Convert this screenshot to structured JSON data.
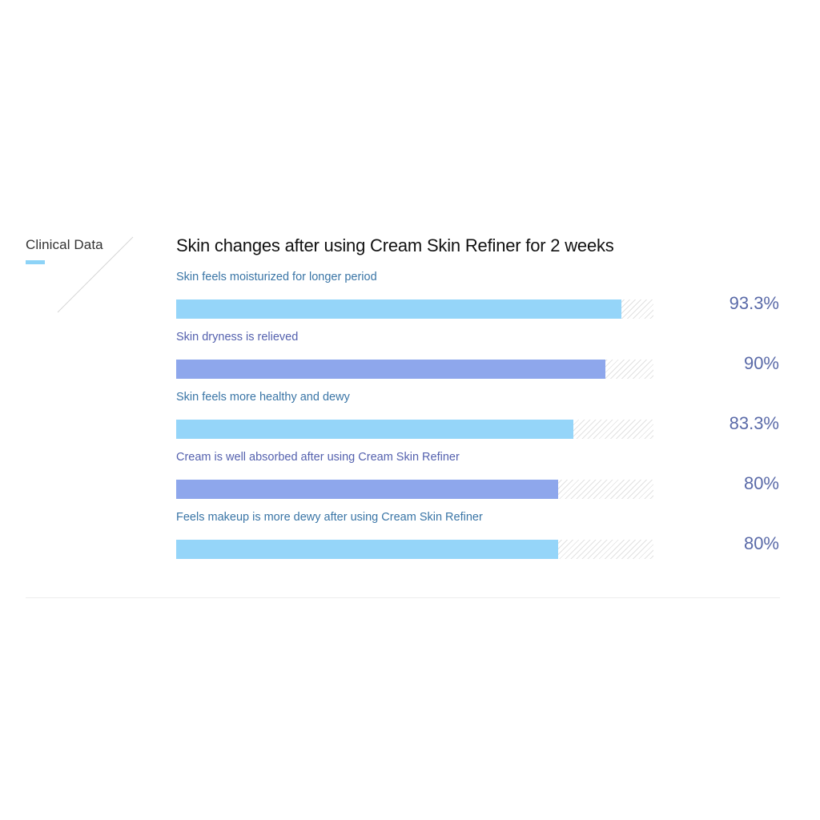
{
  "section": {
    "label": "Clinical Data",
    "accent_color": "#8dd3f7"
  },
  "chart_data": {
    "type": "bar",
    "orientation": "horizontal",
    "title": "Skin changes after using Cream Skin Refiner for 2 weeks",
    "xlim": [
      0,
      100
    ],
    "unit": "%",
    "categories": [
      "Skin feels moisturized for longer period",
      "Skin dryness is relieved",
      "Skin feels more healthy and dewy",
      "Cream is well absorbed after using Cream Skin Refiner",
      "Feels makeup is more dewy after using Cream Skin Refiner"
    ],
    "values": [
      93.3,
      90,
      83.3,
      80,
      80
    ],
    "value_labels": [
      "93.3%",
      "90%",
      "83.3%",
      "80%",
      "80%"
    ],
    "bar_colors": [
      "#95d5f9",
      "#8ea7ec",
      "#95d5f9",
      "#8ea7ec",
      "#95d5f9"
    ],
    "track_style": "hatched"
  }
}
